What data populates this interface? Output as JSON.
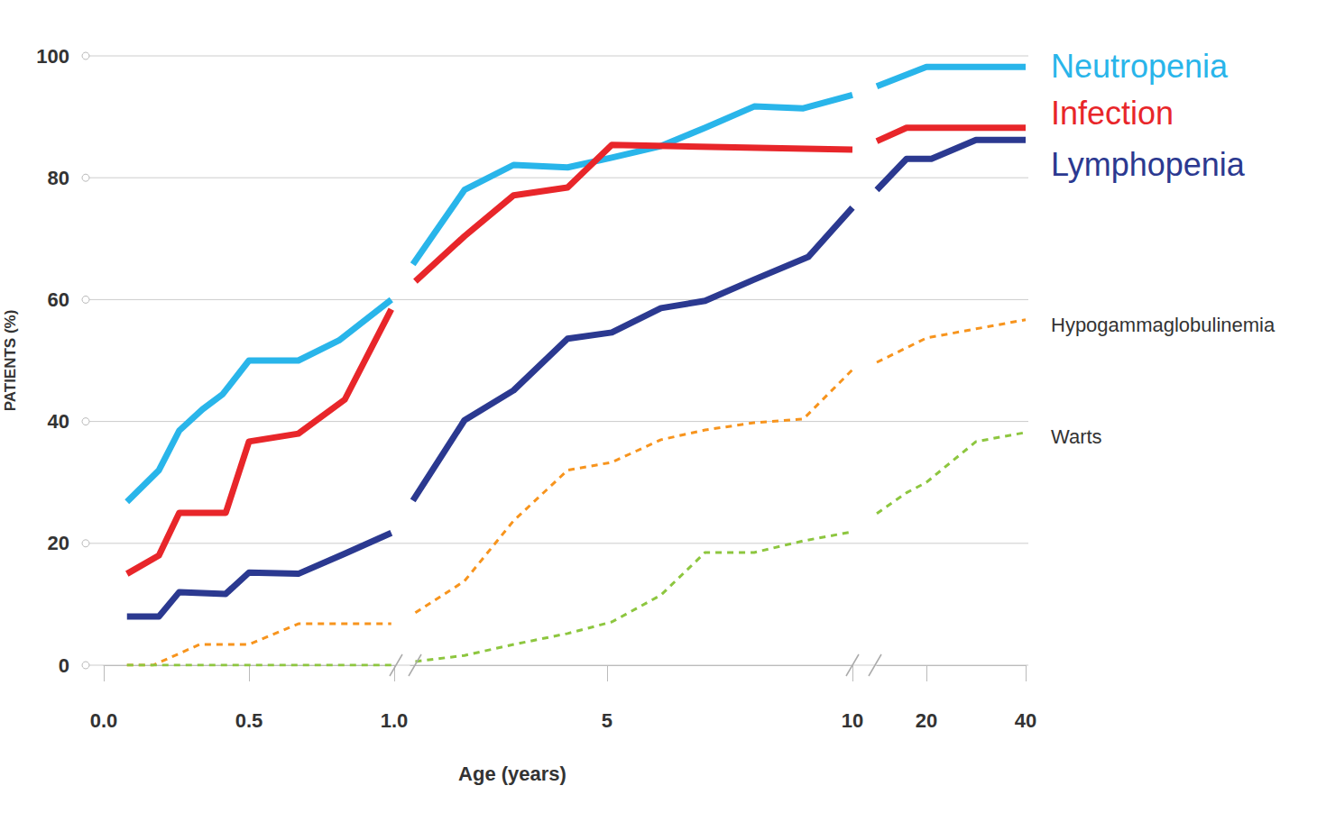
{
  "chart_data": [
    {
      "type": "line",
      "y_label": "PATIENTS (%)",
      "xlim": [
        0,
        1
      ],
      "xticks": [
        {
          "value": 0,
          "label": "0.0"
        },
        {
          "value": 0.5,
          "label": "0.5"
        },
        {
          "value": 1,
          "label": "1.0"
        }
      ],
      "ylim": [
        0,
        100
      ],
      "yticks": [
        0,
        20,
        40,
        60,
        80,
        100
      ],
      "grid": true,
      "series": [
        {
          "color": "#29b5ea",
          "line_style": "solid",
          "x": [
            0.08,
            0.19,
            0.26,
            0.34,
            0.41,
            0.5,
            0.67,
            0.81,
            0.99
          ],
          "values": [
            26.8,
            32,
            38.5,
            42,
            44.5,
            50,
            50,
            53.3,
            60
          ]
        },
        {
          "color": "#e8262a",
          "line_style": "solid",
          "x": [
            0.08,
            0.19,
            0.26,
            0.42,
            0.5,
            0.67,
            0.83,
            0.99
          ],
          "values": [
            15,
            18,
            25,
            25,
            36.7,
            38,
            43.6,
            58.4
          ]
        },
        {
          "color": "#2b3990",
          "line_style": "solid",
          "x": [
            0.08,
            0.19,
            0.26,
            0.42,
            0.5,
            0.67,
            0.83,
            0.99
          ],
          "values": [
            8,
            8,
            12,
            11.7,
            15.2,
            15,
            18.3,
            21.7
          ]
        },
        {
          "color": "#f7941d",
          "line_style": "dashed",
          "x": [
            0.08,
            0.17,
            0.33,
            0.5,
            0.67,
            0.83,
            0.99
          ],
          "values": [
            0,
            0,
            3.4,
            3.4,
            6.8,
            6.8,
            6.8
          ]
        },
        {
          "color": "#8dc63f",
          "line_style": "dashed",
          "x": [
            0.08,
            0.5,
            0.99
          ],
          "values": [
            0,
            0,
            0
          ]
        }
      ]
    },
    {
      "type": "line",
      "x_label": "Age (years)",
      "xlim": [
        1,
        10
      ],
      "xticks": [
        5,
        10
      ],
      "ylim": [
        0,
        100
      ],
      "series": [
        {
          "color": "#29b5ea",
          "line_style": "solid",
          "x": [
            1.05,
            2.1,
            3.1,
            4.2,
            5.1,
            6.1,
            7.0,
            8.0,
            9.0,
            10
          ],
          "values": [
            65.8,
            78,
            82.1,
            81.7,
            83.3,
            85.2,
            88.2,
            91.7,
            91.4,
            93.6
          ]
        },
        {
          "color": "#e8262a",
          "line_style": "solid",
          "x": [
            1.1,
            2.1,
            3.1,
            4.2,
            5.1,
            10
          ],
          "values": [
            63,
            70.4,
            77.1,
            78.4,
            85.4,
            84.6
          ]
        },
        {
          "color": "#2b3990",
          "line_style": "solid",
          "x": [
            1.05,
            2.1,
            3.1,
            4.2,
            5.1,
            6.1,
            7.0,
            8.0,
            9.1,
            10
          ],
          "values": [
            27,
            40.2,
            45.1,
            53.6,
            54.6,
            58.6,
            59.8,
            63.3,
            67,
            75.1
          ]
        },
        {
          "color": "#f7941d",
          "line_style": "dashed",
          "x": [
            1.1,
            2.1,
            3.1,
            4.2,
            5.1,
            6.1,
            7.0,
            8.0,
            9.0,
            10
          ],
          "values": [
            8.6,
            13.8,
            23.7,
            32,
            33.3,
            37,
            38.6,
            39.8,
            40.4,
            48.5
          ]
        },
        {
          "color": "#8dc63f",
          "line_style": "dashed",
          "x": [
            1.1,
            2.1,
            3.1,
            4.2,
            5.1,
            6.1,
            7.0,
            8.0,
            9.0,
            10
          ],
          "values": [
            0.6,
            1.6,
            3.4,
            5.2,
            7.1,
            11.5,
            18.5,
            18.5,
            20.4,
            21.9
          ]
        }
      ]
    },
    {
      "type": "line",
      "xlim": [
        10,
        40
      ],
      "xticks": [
        20,
        40
      ],
      "ylim": [
        0,
        100
      ],
      "series": [
        {
          "name": "Neutropenia",
          "color": "#29b5ea",
          "line_style": "solid",
          "x": [
            10,
            20,
            40
          ],
          "values": [
            95,
            98.2,
            98.2
          ]
        },
        {
          "name": "Infection",
          "color": "#e8262a",
          "line_style": "solid",
          "x": [
            10,
            16,
            40
          ],
          "values": [
            86,
            88.2,
            88.2
          ]
        },
        {
          "name": "Lymphopenia",
          "color": "#2b3990",
          "line_style": "solid",
          "x": [
            10,
            16,
            21,
            30,
            40
          ],
          "values": [
            78,
            83.1,
            83.1,
            86.2,
            86.2
          ]
        },
        {
          "name": "Hypogammaglobulinemia",
          "color": "#f7941d",
          "line_style": "dashed",
          "x": [
            10,
            20,
            30,
            40
          ],
          "values": [
            49.7,
            53.7,
            55.2,
            56.7
          ]
        },
        {
          "name": "Warts",
          "color": "#8dc63f",
          "line_style": "dashed",
          "x": [
            10,
            16,
            20,
            30,
            40
          ],
          "values": [
            24.9,
            28.3,
            30,
            36.7,
            38.2
          ]
        }
      ]
    }
  ]
}
